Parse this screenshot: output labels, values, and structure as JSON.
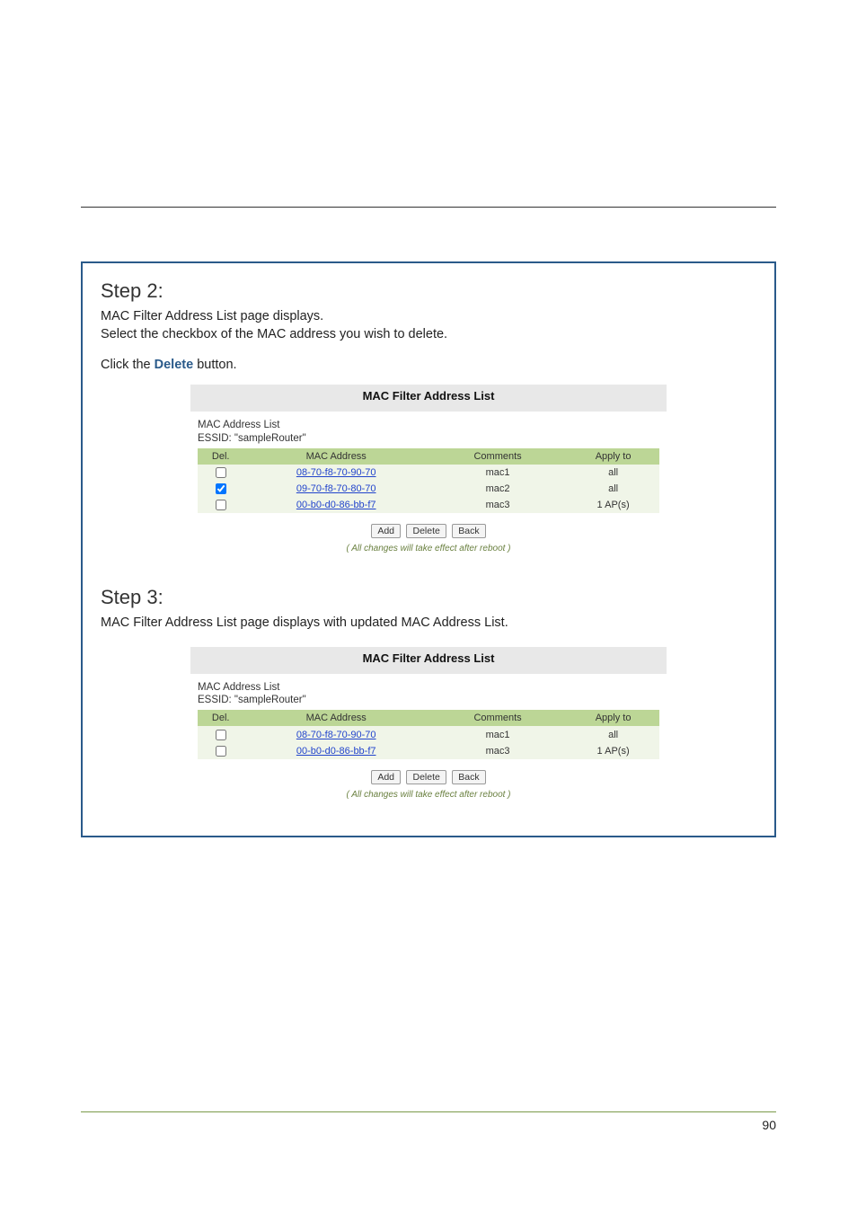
{
  "page_number": "90",
  "step2": {
    "title": "Step 2:",
    "body_line1": "MAC Filter Address List page displays.",
    "body_line2": "Select the checkbox of the MAC address you wish to delete.",
    "click_prefix": "Click the ",
    "click_word": "Delete",
    "click_suffix": " button.",
    "panel_title": "MAC Filter Address List",
    "list_caption_line1": "MAC Address List",
    "list_caption_line2": "ESSID: \"sampleRouter\"",
    "headers": {
      "del": "Del.",
      "mac": "MAC Address",
      "comments": "Comments",
      "apply": "Apply to"
    },
    "rows": [
      {
        "checked": false,
        "mac": "08-70-f8-70-90-70",
        "comments": "mac1",
        "apply": "all"
      },
      {
        "checked": true,
        "mac": "09-70-f8-70-80-70",
        "comments": "mac2",
        "apply": "all"
      },
      {
        "checked": false,
        "mac": "00-b0-d0-86-bb-f7",
        "comments": "mac3",
        "apply": "1 AP(s)"
      }
    ],
    "buttons": {
      "add": "Add",
      "delete": "Delete",
      "back": "Back"
    },
    "reboot_note": "( All changes will take effect after reboot )"
  },
  "step3": {
    "title": "Step 3:",
    "body_line1": "MAC Filter Address List page displays with updated MAC Address List.",
    "panel_title": "MAC Filter Address List",
    "list_caption_line1": "MAC Address List",
    "list_caption_line2": "ESSID: \"sampleRouter\"",
    "headers": {
      "del": "Del.",
      "mac": "MAC Address",
      "comments": "Comments",
      "apply": "Apply to"
    },
    "rows": [
      {
        "checked": false,
        "mac": "08-70-f8-70-90-70",
        "comments": "mac1",
        "apply": "all"
      },
      {
        "checked": false,
        "mac": "00-b0-d0-86-bb-f7",
        "comments": "mac3",
        "apply": "1 AP(s)"
      }
    ],
    "buttons": {
      "add": "Add",
      "delete": "Delete",
      "back": "Back"
    },
    "reboot_note": "( All changes will take effect after reboot )"
  }
}
